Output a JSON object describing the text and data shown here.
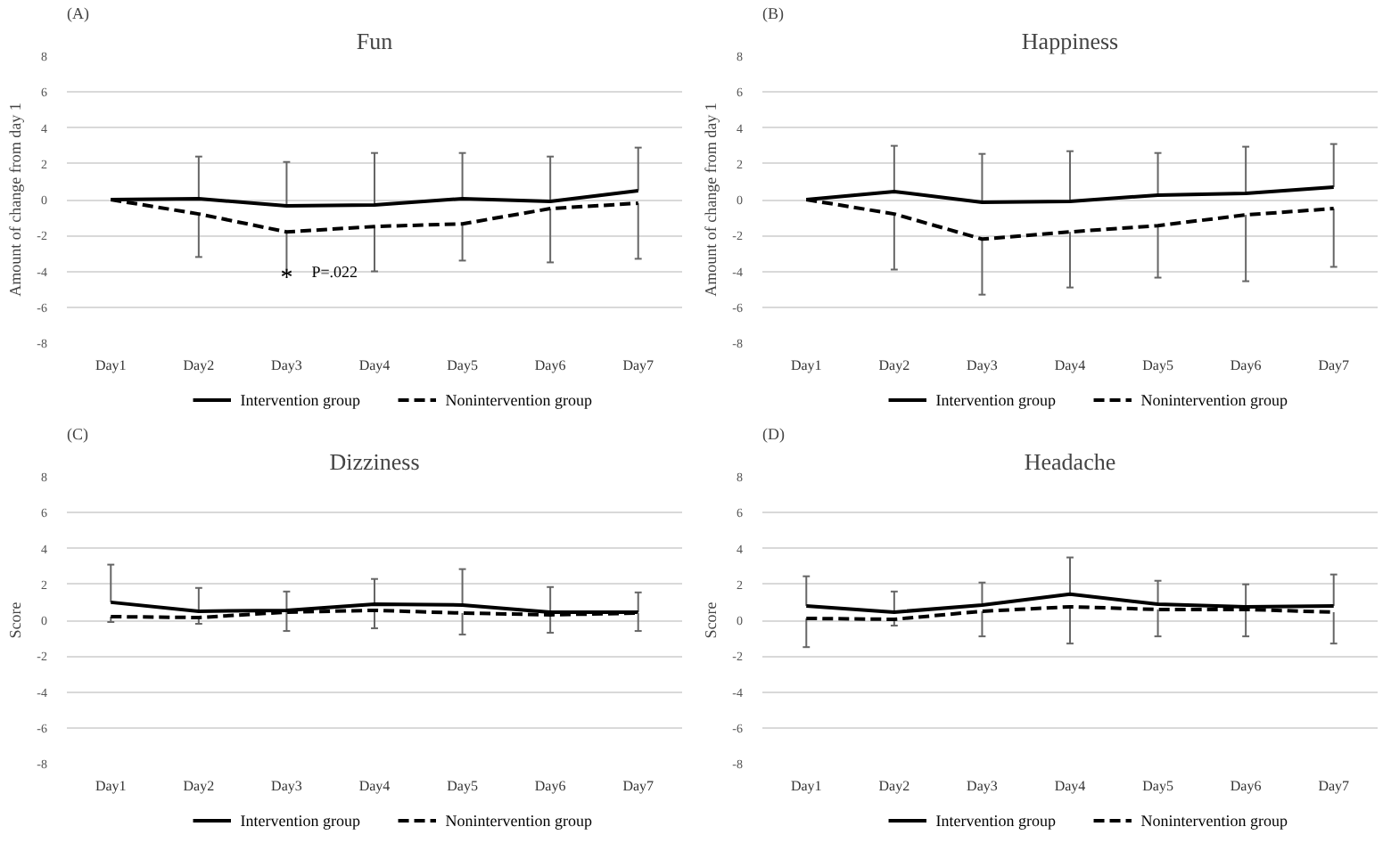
{
  "chart_data": [
    {
      "type": "line",
      "title": "Fun",
      "ylabel": "Amount of change from day 1",
      "annotations": [
        "(A)",
        {
          "text": "*",
          "x": "Day3",
          "y": -4.1
        },
        {
          "text": "P=.022",
          "x": "Day3",
          "y": -4.0
        }
      ],
      "categories": [
        "Day1",
        "Day2",
        "Day3",
        "Day4",
        "Day5",
        "Day6",
        "Day7"
      ],
      "ylim": [
        -8,
        8
      ],
      "yticks": [
        -8,
        -6,
        -4,
        -2,
        0,
        2,
        4,
        6,
        8
      ],
      "grid": "y",
      "legend": "bottom",
      "series": [
        {
          "name": "Intervention group",
          "color": "#000000",
          "line_style": "solid",
          "values": [
            0,
            0.05,
            -0.35,
            -0.3,
            0.05,
            -0.1,
            0.5
          ],
          "errors": [
            null,
            [
              0.05,
              2.4
            ],
            [
              -0.35,
              2.1
            ],
            [
              -0.3,
              2.6
            ],
            [
              0.05,
              2.6
            ],
            [
              -0.1,
              2.4
            ],
            [
              0.5,
              2.9
            ]
          ]
        },
        {
          "name": "Nonintervention group",
          "color": "#000000",
          "line_style": "dashed",
          "values": [
            0,
            -0.8,
            -1.8,
            -1.5,
            -1.35,
            -0.5,
            -0.2
          ],
          "errors": [
            null,
            [
              -3.2,
              -0.8
            ],
            [
              -4.1,
              -1.8
            ],
            [
              -4.0,
              -1.5
            ],
            [
              -3.4,
              -1.35
            ],
            [
              -3.5,
              -0.5
            ],
            [
              -3.3,
              -0.2
            ]
          ]
        }
      ]
    },
    {
      "type": "line",
      "title": "Happiness",
      "ylabel": "Amount of change from day 1",
      "annotations": [
        "(B)"
      ],
      "categories": [
        "Day1",
        "Day2",
        "Day3",
        "Day4",
        "Day5",
        "Day6",
        "Day7"
      ],
      "ylim": [
        -8,
        8
      ],
      "yticks": [
        -8,
        -6,
        -4,
        -2,
        0,
        2,
        4,
        6,
        8
      ],
      "grid": "y",
      "legend": "bottom",
      "series": [
        {
          "name": "Intervention group",
          "color": "#000000",
          "line_style": "solid",
          "values": [
            0,
            0.45,
            -0.15,
            -0.1,
            0.25,
            0.35,
            0.7
          ],
          "errors": [
            null,
            [
              0.45,
              3.0
            ],
            [
              -0.15,
              2.55
            ],
            [
              -0.1,
              2.7
            ],
            [
              0.25,
              2.6
            ],
            [
              0.35,
              2.95
            ],
            [
              0.7,
              3.1
            ]
          ]
        },
        {
          "name": "Nonintervention group",
          "color": "#000000",
          "line_style": "dashed",
          "values": [
            0,
            -0.8,
            -2.2,
            -1.8,
            -1.45,
            -0.85,
            -0.5
          ],
          "errors": [
            null,
            [
              -3.9,
              -0.8
            ],
            [
              -5.3,
              -2.2
            ],
            [
              -4.9,
              -1.8
            ],
            [
              -4.35,
              -1.45
            ],
            [
              -4.55,
              -0.85
            ],
            [
              -3.75,
              -0.5
            ]
          ]
        }
      ]
    },
    {
      "type": "line",
      "title": "Dizziness",
      "ylabel": "Score",
      "annotations": [
        "(C)"
      ],
      "categories": [
        "Day1",
        "Day2",
        "Day3",
        "Day4",
        "Day5",
        "Day6",
        "Day7"
      ],
      "ylim": [
        -8,
        8
      ],
      "yticks": [
        -8,
        -6,
        -4,
        -2,
        0,
        2,
        4,
        6,
        8
      ],
      "grid": "y",
      "legend": "bottom",
      "series": [
        {
          "name": "Intervention group",
          "color": "#000000",
          "line_style": "solid",
          "values": [
            1.0,
            0.5,
            0.55,
            0.9,
            0.85,
            0.45,
            0.45
          ],
          "errors": [
            [
              1.0,
              3.1
            ],
            [
              0.5,
              1.8
            ],
            [
              0.55,
              1.6
            ],
            [
              0.9,
              2.3
            ],
            [
              0.85,
              2.85
            ],
            [
              0.45,
              1.85
            ],
            [
              0.45,
              1.55
            ]
          ]
        },
        {
          "name": "Nonintervention group",
          "color": "#000000",
          "line_style": "dashed",
          "values": [
            0.2,
            0.15,
            0.45,
            0.55,
            0.4,
            0.3,
            0.4
          ],
          "errors": [
            [
              -0.1,
              0.2
            ],
            [
              -0.2,
              0.15
            ],
            [
              -0.6,
              0.45
            ],
            [
              -0.45,
              0.55
            ],
            [
              -0.8,
              0.4
            ],
            [
              -0.7,
              0.3
            ],
            [
              -0.6,
              0.4
            ]
          ]
        }
      ]
    },
    {
      "type": "line",
      "title": "Headache",
      "ylabel": "Score",
      "annotations": [
        "(D)"
      ],
      "categories": [
        "Day1",
        "Day2",
        "Day3",
        "Day4",
        "Day5",
        "Day6",
        "Day7"
      ],
      "ylim": [
        -8,
        8
      ],
      "yticks": [
        -8,
        -6,
        -4,
        -2,
        0,
        2,
        4,
        6,
        8
      ],
      "grid": "y",
      "legend": "bottom",
      "series": [
        {
          "name": "Intervention group",
          "color": "#000000",
          "line_style": "solid",
          "values": [
            0.8,
            0.45,
            0.85,
            1.45,
            0.9,
            0.75,
            0.8
          ],
          "errors": [
            [
              0.8,
              2.45
            ],
            [
              0.45,
              1.6
            ],
            [
              0.85,
              2.1
            ],
            [
              1.45,
              3.5
            ],
            [
              0.9,
              2.2
            ],
            [
              0.75,
              2.0
            ],
            [
              0.8,
              2.55
            ]
          ]
        },
        {
          "name": "Nonintervention group",
          "color": "#000000",
          "line_style": "dashed",
          "values": [
            0.1,
            0.05,
            0.5,
            0.75,
            0.6,
            0.6,
            0.45
          ],
          "errors": [
            [
              -1.5,
              0.1
            ],
            [
              -0.3,
              0.05
            ],
            [
              -0.9,
              0.5
            ],
            [
              -1.3,
              0.75
            ],
            [
              -0.9,
              0.6
            ],
            [
              -0.9,
              0.6
            ],
            [
              -1.3,
              0.45
            ]
          ]
        }
      ]
    }
  ]
}
